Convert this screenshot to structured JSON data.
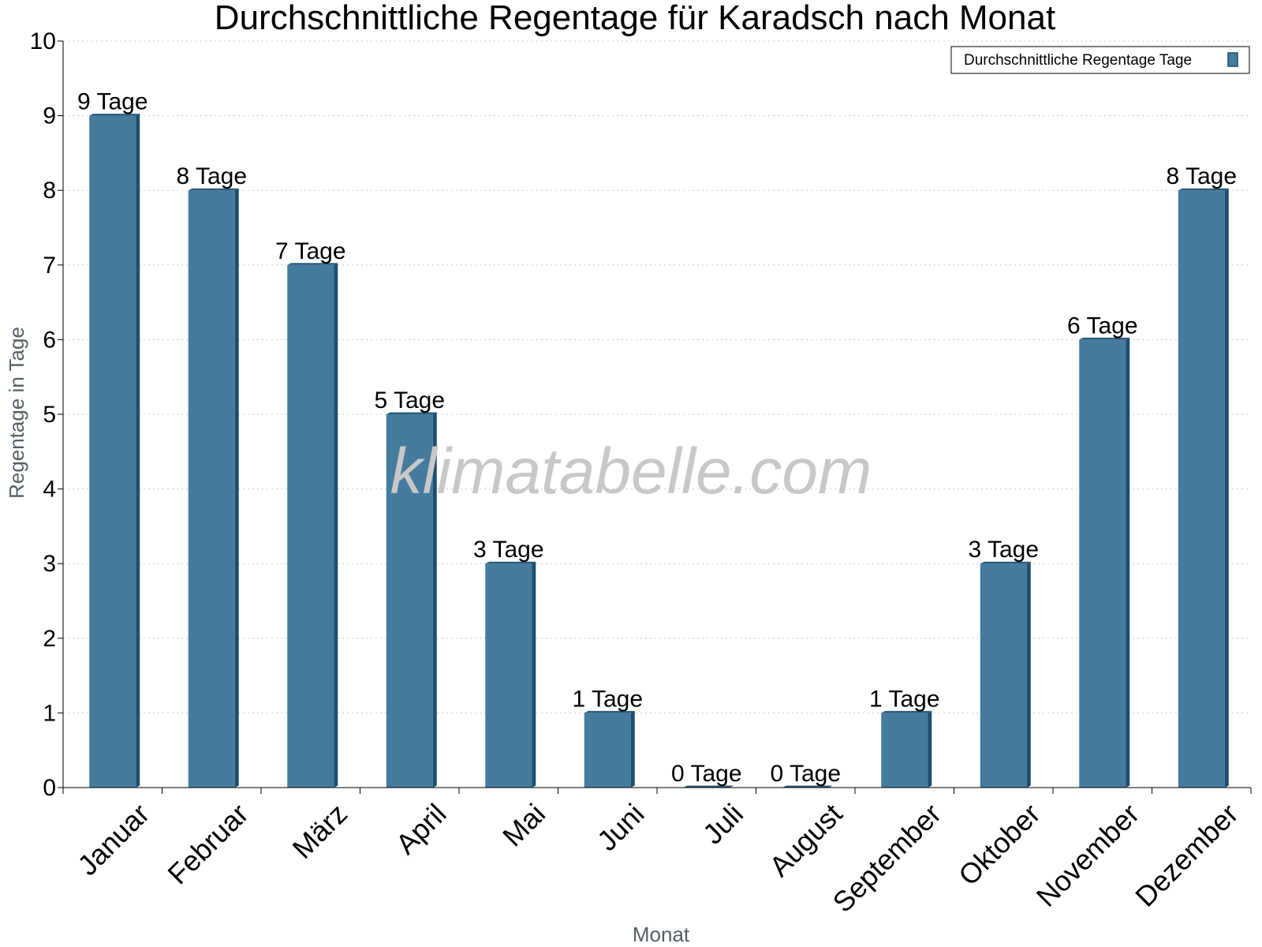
{
  "chart_data": {
    "type": "bar",
    "title": "Durchschnittliche Regentage für Karadsch nach Monat",
    "xlabel": "Monat",
    "ylabel": "Regentage in Tage",
    "categories": [
      "Januar",
      "Februar",
      "März",
      "April",
      "Mai",
      "Juni",
      "Juli",
      "August",
      "September",
      "Oktober",
      "November",
      "Dezember"
    ],
    "series": [
      {
        "name": "Durchschnittliche Regentage Tage",
        "values": [
          9,
          8,
          7,
          5,
          3,
          1,
          0,
          0,
          1,
          3,
          6,
          8
        ],
        "data_labels": [
          "9 Tage",
          "8 Tage",
          "7 Tage",
          "5 Tage",
          "3 Tage",
          "1 Tage",
          "0 Tage",
          "0 Tage",
          "1 Tage",
          "3 Tage",
          "6 Tage",
          "8 Tage"
        ]
      }
    ],
    "ylim": [
      0,
      10
    ],
    "yticks": [
      "0",
      "1",
      "2",
      "3",
      "4",
      "5",
      "6",
      "7",
      "8",
      "9",
      "10"
    ],
    "grid": true,
    "legend_position": "top-right",
    "watermark": "klimatabelle.com",
    "colors": {
      "bar": "#457b9d",
      "bar_side": "#1d4e6e",
      "bar_top": "#2a5a7a",
      "grid": "#cccccc"
    }
  }
}
